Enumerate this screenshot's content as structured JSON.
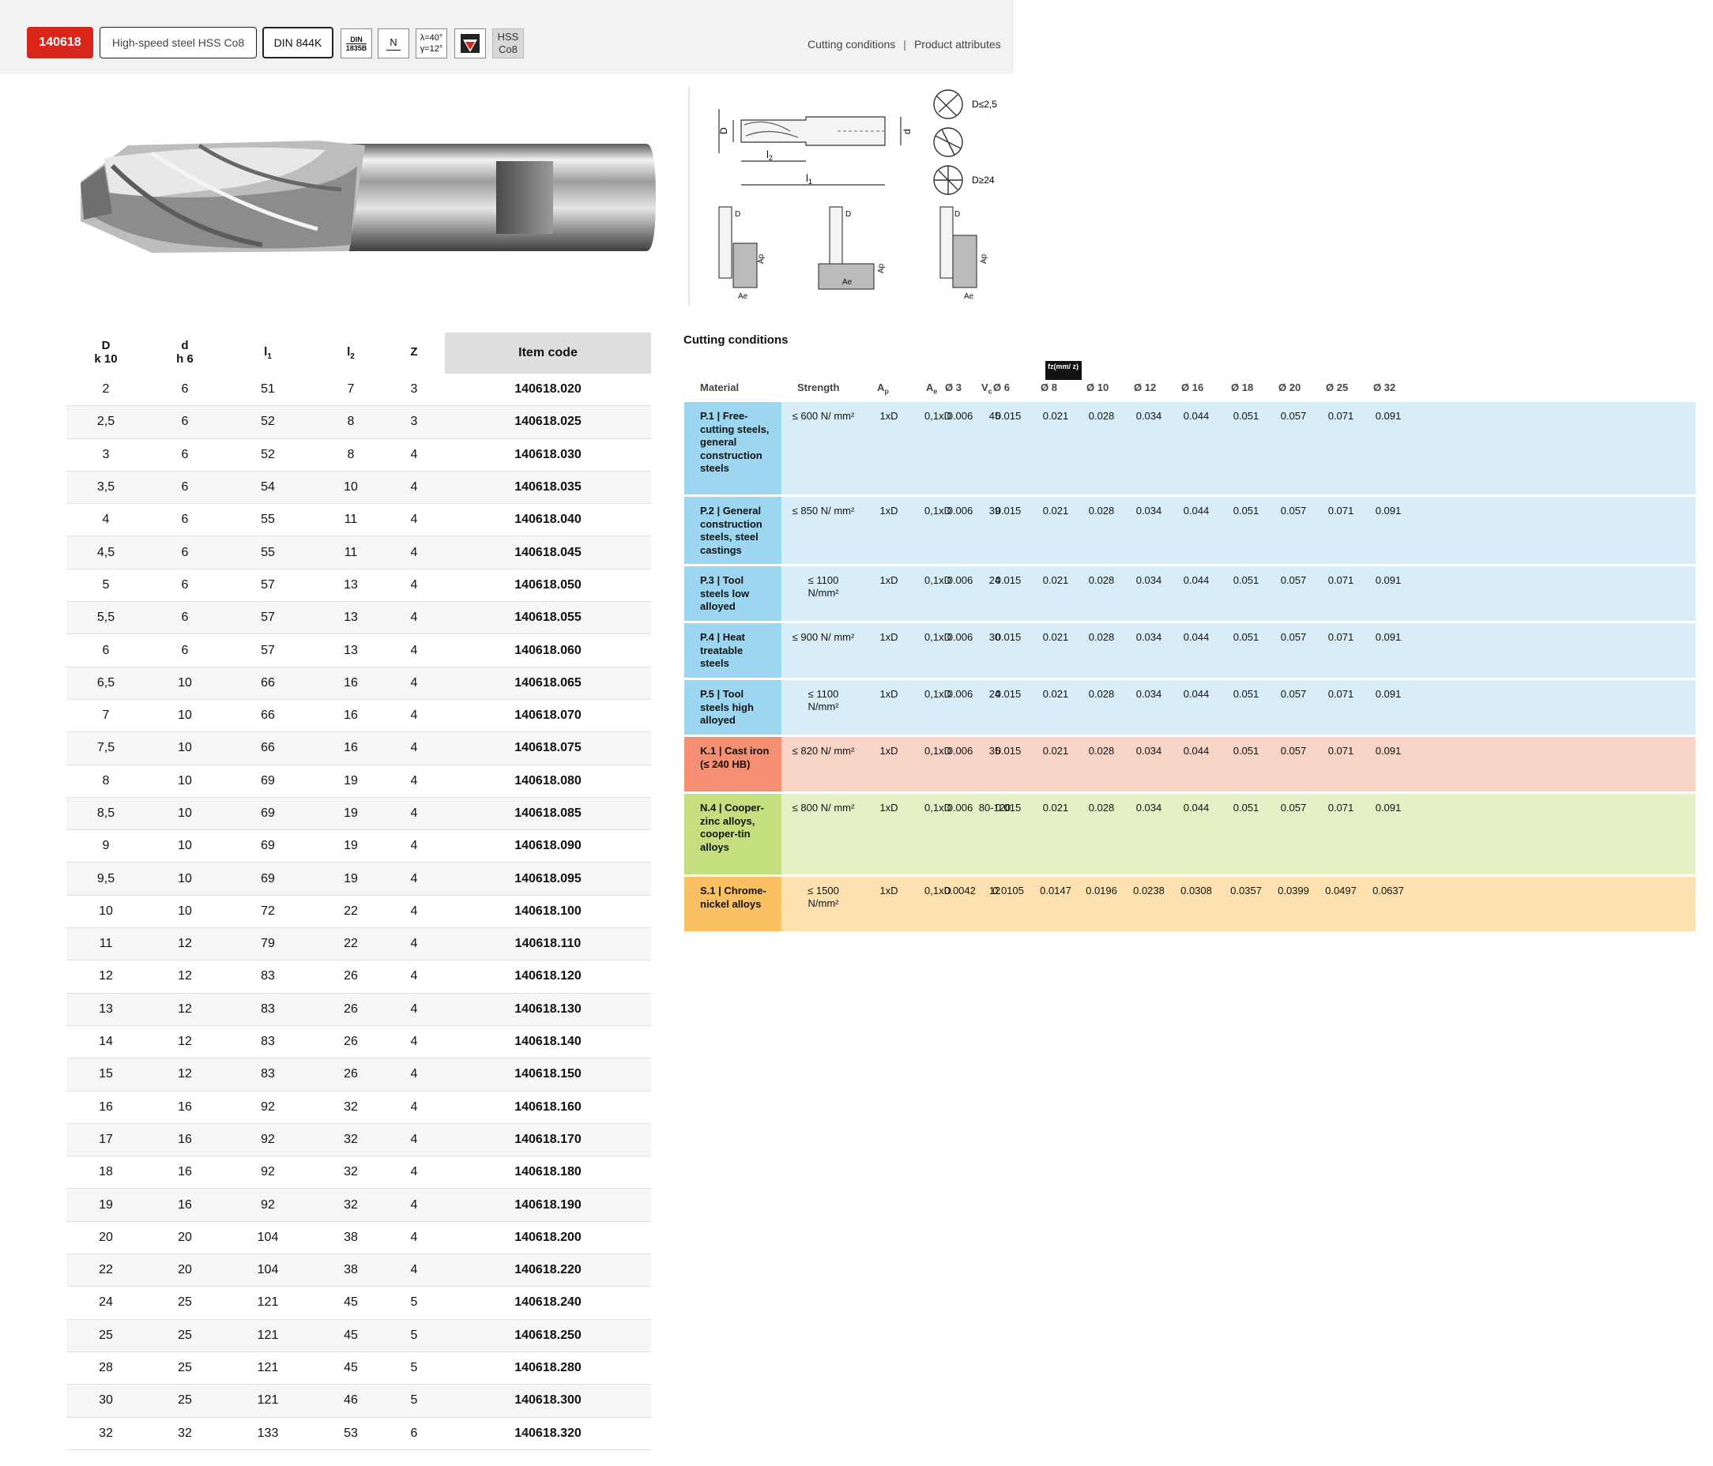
{
  "header": {
    "item_id": "140618",
    "material": "High-speed steel HSS Co8",
    "standard": "DIN 844K",
    "icons": {
      "din1835_line1": "DIN",
      "din1835_line2": "1835B",
      "type_n": "N",
      "angle_line1": "λ=40°",
      "angle_line2": "γ=12°",
      "coating_icon": "coating-icon",
      "hss_line1": "HSS",
      "hss_line2": "Co8"
    },
    "links": {
      "cutting_conditions": "Cutting conditions",
      "separator": "|",
      "product_attributes": "Product attributes"
    }
  },
  "drawing": {
    "D": "D",
    "d": "d",
    "l1": "l",
    "l1_sub": "1",
    "l2": "l",
    "l2_sub": "2",
    "small_label": "D≤2,5",
    "large_label": "D≥24",
    "ap": "Ap",
    "ae": "Ae"
  },
  "dims": {
    "headers": {
      "D_line1": "D",
      "D_line2": "k 10",
      "d_line1": "d",
      "d_line2": "h 6",
      "l1": "l",
      "l1_sub": "1",
      "l2": "l",
      "l2_sub": "2",
      "z": "Z",
      "item_code": "Item code"
    },
    "rows": [
      {
        "D": "2",
        "d": "6",
        "l1": "51",
        "l2": "7",
        "z": "3",
        "code": "140618.020"
      },
      {
        "D": "2,5",
        "d": "6",
        "l1": "52",
        "l2": "8",
        "z": "3",
        "code": "140618.025"
      },
      {
        "D": "3",
        "d": "6",
        "l1": "52",
        "l2": "8",
        "z": "4",
        "code": "140618.030"
      },
      {
        "D": "3,5",
        "d": "6",
        "l1": "54",
        "l2": "10",
        "z": "4",
        "code": "140618.035"
      },
      {
        "D": "4",
        "d": "6",
        "l1": "55",
        "l2": "11",
        "z": "4",
        "code": "140618.040"
      },
      {
        "D": "4,5",
        "d": "6",
        "l1": "55",
        "l2": "11",
        "z": "4",
        "code": "140618.045"
      },
      {
        "D": "5",
        "d": "6",
        "l1": "57",
        "l2": "13",
        "z": "4",
        "code": "140618.050"
      },
      {
        "D": "5,5",
        "d": "6",
        "l1": "57",
        "l2": "13",
        "z": "4",
        "code": "140618.055"
      },
      {
        "D": "6",
        "d": "6",
        "l1": "57",
        "l2": "13",
        "z": "4",
        "code": "140618.060"
      },
      {
        "D": "6,5",
        "d": "10",
        "l1": "66",
        "l2": "16",
        "z": "4",
        "code": "140618.065"
      },
      {
        "D": "7",
        "d": "10",
        "l1": "66",
        "l2": "16",
        "z": "4",
        "code": "140618.070"
      },
      {
        "D": "7,5",
        "d": "10",
        "l1": "66",
        "l2": "16",
        "z": "4",
        "code": "140618.075"
      },
      {
        "D": "8",
        "d": "10",
        "l1": "69",
        "l2": "19",
        "z": "4",
        "code": "140618.080"
      },
      {
        "D": "8,5",
        "d": "10",
        "l1": "69",
        "l2": "19",
        "z": "4",
        "code": "140618.085"
      },
      {
        "D": "9",
        "d": "10",
        "l1": "69",
        "l2": "19",
        "z": "4",
        "code": "140618.090"
      },
      {
        "D": "9,5",
        "d": "10",
        "l1": "69",
        "l2": "19",
        "z": "4",
        "code": "140618.095"
      },
      {
        "D": "10",
        "d": "10",
        "l1": "72",
        "l2": "22",
        "z": "4",
        "code": "140618.100"
      },
      {
        "D": "11",
        "d": "12",
        "l1": "79",
        "l2": "22",
        "z": "4",
        "code": "140618.110"
      },
      {
        "D": "12",
        "d": "12",
        "l1": "83",
        "l2": "26",
        "z": "4",
        "code": "140618.120"
      },
      {
        "D": "13",
        "d": "12",
        "l1": "83",
        "l2": "26",
        "z": "4",
        "code": "140618.130"
      },
      {
        "D": "14",
        "d": "12",
        "l1": "83",
        "l2": "26",
        "z": "4",
        "code": "140618.140"
      },
      {
        "D": "15",
        "d": "12",
        "l1": "83",
        "l2": "26",
        "z": "4",
        "code": "140618.150"
      },
      {
        "D": "16",
        "d": "16",
        "l1": "92",
        "l2": "32",
        "z": "4",
        "code": "140618.160"
      },
      {
        "D": "17",
        "d": "16",
        "l1": "92",
        "l2": "32",
        "z": "4",
        "code": "140618.170"
      },
      {
        "D": "18",
        "d": "16",
        "l1": "92",
        "l2": "32",
        "z": "4",
        "code": "140618.180"
      },
      {
        "D": "19",
        "d": "16",
        "l1": "92",
        "l2": "32",
        "z": "4",
        "code": "140618.190"
      },
      {
        "D": "20",
        "d": "20",
        "l1": "104",
        "l2": "38",
        "z": "4",
        "code": "140618.200"
      },
      {
        "D": "22",
        "d": "20",
        "l1": "104",
        "l2": "38",
        "z": "4",
        "code": "140618.220"
      },
      {
        "D": "24",
        "d": "25",
        "l1": "121",
        "l2": "45",
        "z": "5",
        "code": "140618.240"
      },
      {
        "D": "25",
        "d": "25",
        "l1": "121",
        "l2": "45",
        "z": "5",
        "code": "140618.250"
      },
      {
        "D": "28",
        "d": "25",
        "l1": "121",
        "l2": "45",
        "z": "5",
        "code": "140618.280"
      },
      {
        "D": "30",
        "d": "25",
        "l1": "121",
        "l2": "46",
        "z": "5",
        "code": "140618.300"
      },
      {
        "D": "32",
        "d": "32",
        "l1": "133",
        "l2": "53",
        "z": "6",
        "code": "140618.320"
      }
    ]
  },
  "cutting": {
    "title": "Cutting conditions",
    "fz_label": "fz(mm/ z)",
    "headers": {
      "material": "Material",
      "strength": "Strength",
      "ap": "A",
      "ap_sub": "p",
      "ae": "A",
      "ae_sub": "e",
      "vc": "V",
      "vc_sub": "c",
      "diams": [
        "Ø 3",
        "Ø 6",
        "Ø 8",
        "Ø 10",
        "Ø 12",
        "Ø 16",
        "Ø 18",
        "Ø 20",
        "Ø 25",
        "Ø 32"
      ]
    },
    "rows": [
      {
        "material": "P.1 | Free-cutting steels, general construction steels",
        "strength": "≤ 600 N/ mm²",
        "ap": "1xD",
        "ae": "0,1xD",
        "vc": "45",
        "fz": [
          "0.006",
          "0.015",
          "0.021",
          "0.028",
          "0.034",
          "0.044",
          "0.051",
          "0.057",
          "0.071",
          "0.091"
        ]
      },
      {
        "material": "P.2 | General construction steels, steel castings",
        "strength": "≤ 850 N/ mm²",
        "ap": "1xD",
        "ae": "0,1xD",
        "vc": "39",
        "fz": [
          "0.006",
          "0.015",
          "0.021",
          "0.028",
          "0.034",
          "0.044",
          "0.051",
          "0.057",
          "0.071",
          "0.091"
        ]
      },
      {
        "material": "P.3 | Tool steels low alloyed",
        "strength": "≤ 1100 N/mm²",
        "ap": "1xD",
        "ae": "0,1xD",
        "vc": "24",
        "fz": [
          "0.006",
          "0.015",
          "0.021",
          "0.028",
          "0.034",
          "0.044",
          "0.051",
          "0.057",
          "0.071",
          "0.091"
        ]
      },
      {
        "material": "P.4 | Heat treatable steels",
        "strength": "≤ 900 N/ mm²",
        "ap": "1xD",
        "ae": "0,1xD",
        "vc": "30",
        "fz": [
          "0.006",
          "0.015",
          "0.021",
          "0.028",
          "0.034",
          "0.044",
          "0.051",
          "0.057",
          "0.071",
          "0.091"
        ]
      },
      {
        "material": "P.5 | Tool steels high alloyed",
        "strength": "≤ 1100 N/mm²",
        "ap": "1xD",
        "ae": "0,1xD",
        "vc": "24",
        "fz": [
          "0.006",
          "0.015",
          "0.021",
          "0.028",
          "0.034",
          "0.044",
          "0.051",
          "0.057",
          "0.071",
          "0.091"
        ]
      },
      {
        "material": "K.1 | Cast iron (≤ 240 HB)",
        "strength": "≤ 820 N/ mm²",
        "ap": "1xD",
        "ae": "0,1xD",
        "vc": "35",
        "fz": [
          "0.006",
          "0.015",
          "0.021",
          "0.028",
          "0.034",
          "0.044",
          "0.051",
          "0.057",
          "0.071",
          "0.091"
        ]
      },
      {
        "material": "N.4 | Cooper-zinc alloys, cooper-tin alloys",
        "strength": "≤ 800 N/ mm²",
        "ap": "1xD",
        "ae": "0,1xD",
        "vc": "80-120",
        "fz": [
          "0.006",
          "0.015",
          "0.021",
          "0.028",
          "0.034",
          "0.044",
          "0.051",
          "0.057",
          "0.071",
          "0.091"
        ]
      },
      {
        "material": "S.1 | Chrome-nickel alloys",
        "strength": "≤ 1500 N/mm²",
        "ap": "1xD",
        "ae": "0,1xD",
        "vc": "12",
        "fz": [
          "0.0042",
          "0.0105",
          "0.0147",
          "0.0196",
          "0.0238",
          "0.0308",
          "0.0357",
          "0.0399",
          "0.0497",
          "0.0637"
        ]
      }
    ]
  },
  "colors": {
    "accent_red": "#d9261c",
    "p_group": "#9dd6f1",
    "k_group": "#f58f72",
    "n_group": "#c3df7e",
    "s_group": "#fbc062"
  }
}
